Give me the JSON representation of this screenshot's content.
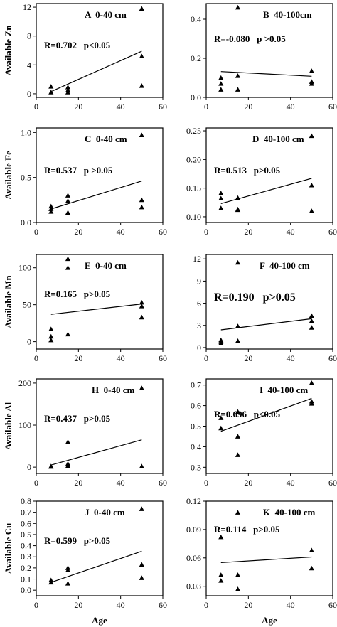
{
  "chart_data": [
    {
      "type": "scatter",
      "label": "A  0-40 cm",
      "stat": "R=0.702   p<0.05",
      "ylabel": "Available Zn",
      "xlabel": "",
      "xlim": [
        0,
        60
      ],
      "ylim": [
        -0.5,
        12.5
      ],
      "xticks": [
        "0",
        "20",
        "40",
        "60"
      ],
      "yticks": [
        "0",
        "4",
        "8",
        "12"
      ],
      "points": [
        [
          7,
          0.2
        ],
        [
          7,
          1.0
        ],
        [
          15,
          0.2
        ],
        [
          15,
          0.5
        ],
        [
          15,
          0.9
        ],
        [
          50,
          11.8
        ],
        [
          50,
          5.2
        ],
        [
          50,
          1.1
        ]
      ],
      "trend": [
        [
          7,
          0.3
        ],
        [
          50,
          5.9
        ]
      ]
    },
    {
      "type": "scatter",
      "label": "B  40-100cm",
      "stat": "R=-0.080   p >0.05",
      "ylabel": "",
      "xlabel": "",
      "xlim": [
        0,
        60
      ],
      "ylim": [
        0,
        0.48
      ],
      "xticks": [
        "0",
        "20",
        "40",
        "60"
      ],
      "yticks": [
        "0.0",
        "0.2",
        "0.4"
      ],
      "points": [
        [
          7,
          0.1
        ],
        [
          7,
          0.07
        ],
        [
          7,
          0.04
        ],
        [
          15,
          0.46
        ],
        [
          15,
          0.11
        ],
        [
          15,
          0.04
        ],
        [
          50,
          0.135
        ],
        [
          50,
          0.08
        ],
        [
          50,
          0.07
        ]
      ],
      "trend": [
        [
          7,
          0.132
        ],
        [
          50,
          0.108
        ]
      ]
    },
    {
      "type": "scatter",
      "label": "C  0-40 cm",
      "stat": "R=0.537   p >0.05",
      "ylabel": "Available Fe",
      "xlabel": "",
      "xlim": [
        0,
        60
      ],
      "ylim": [
        0,
        1.05
      ],
      "xticks": [
        "0",
        "20",
        "40",
        "60"
      ],
      "yticks": [
        "0.0",
        "0.5",
        "1.0"
      ],
      "points": [
        [
          7,
          0.18
        ],
        [
          7,
          0.15
        ],
        [
          7,
          0.12
        ],
        [
          15,
          0.3
        ],
        [
          15,
          0.24
        ],
        [
          15,
          0.11
        ],
        [
          50,
          0.97
        ],
        [
          50,
          0.25
        ],
        [
          50,
          0.17
        ]
      ],
      "trend": [
        [
          7,
          0.15
        ],
        [
          50,
          0.46
        ]
      ]
    },
    {
      "type": "scatter",
      "label": "D  40-100 cm",
      "stat": "R=0.513   p>0.05",
      "ylabel": "",
      "xlabel": "",
      "xlim": [
        0,
        60
      ],
      "ylim": [
        0.09,
        0.255
      ],
      "xticks": [
        "0",
        "20",
        "40",
        "60"
      ],
      "yticks": [
        "0.10",
        "0.15",
        "0.20",
        "0.25"
      ],
      "points": [
        [
          7,
          0.141
        ],
        [
          7,
          0.132
        ],
        [
          7,
          0.115
        ],
        [
          15,
          0.133
        ],
        [
          15,
          0.113
        ],
        [
          15,
          0.112
        ],
        [
          50,
          0.241
        ],
        [
          50,
          0.155
        ],
        [
          50,
          0.11
        ]
      ],
      "trend": [
        [
          7,
          0.123
        ],
        [
          50,
          0.167
        ]
      ]
    },
    {
      "type": "scatter",
      "label": "E  0-40 cm",
      "stat": "R=0.165   p>0.05",
      "ylabel": "Available Mn",
      "xlabel": "",
      "xlim": [
        0,
        60
      ],
      "ylim": [
        -10,
        118
      ],
      "xticks": [
        "0",
        "20",
        "40",
        "60"
      ],
      "yticks": [
        "0",
        "50",
        "100"
      ],
      "points": [
        [
          7,
          17
        ],
        [
          7,
          7
        ],
        [
          7,
          2
        ],
        [
          15,
          112
        ],
        [
          15,
          100
        ],
        [
          15,
          10
        ],
        [
          50,
          53
        ],
        [
          50,
          48
        ],
        [
          50,
          33
        ]
      ],
      "trend": [
        [
          7,
          37
        ],
        [
          50,
          51
        ]
      ]
    },
    {
      "type": "scatter",
      "label": "F  40-100 cm",
      "stat": "R=0.190   p>0.05",
      "ylabel": "",
      "xlabel": "",
      "xlim": [
        0,
        60
      ],
      "ylim": [
        -0.2,
        12.6
      ],
      "xticks": [
        "0",
        "20",
        "40",
        "60"
      ],
      "yticks": [
        "0",
        "3",
        "6",
        "9",
        "12"
      ],
      "points": [
        [
          7,
          1.0
        ],
        [
          7,
          0.8
        ],
        [
          7,
          0.6
        ],
        [
          15,
          11.5
        ],
        [
          15,
          2.9
        ],
        [
          15,
          0.9
        ],
        [
          50,
          4.3
        ],
        [
          50,
          3.6
        ],
        [
          50,
          2.7
        ]
      ],
      "trend": [
        [
          7,
          2.4
        ],
        [
          50,
          3.9
        ]
      ]
    },
    {
      "type": "scatter",
      "label": "H  0-40 cm",
      "stat": "R=0.437   p>0.05",
      "ylabel": "Available Al",
      "xlabel": "",
      "xlim": [
        0,
        60
      ],
      "ylim": [
        -15,
        210
      ],
      "xticks": [
        "0",
        "20",
        "40",
        "60"
      ],
      "yticks": [
        "0",
        "100",
        "200"
      ],
      "points": [
        [
          7,
          2
        ],
        [
          7,
          1
        ],
        [
          15,
          60
        ],
        [
          15,
          8
        ],
        [
          15,
          3
        ],
        [
          50,
          188
        ],
        [
          50,
          2
        ]
      ],
      "trend": [
        [
          7,
          5
        ],
        [
          50,
          65
        ]
      ]
    },
    {
      "type": "scatter",
      "label": "I  40-100 cm",
      "stat": "R=0.696   p<0.05",
      "ylabel": "",
      "xlabel": "",
      "xlim": [
        0,
        60
      ],
      "ylim": [
        0.27,
        0.73
      ],
      "xticks": [
        "0",
        "20",
        "40",
        "60"
      ],
      "yticks": [
        "0.3",
        "0.4",
        "0.5",
        "0.6",
        "0.7"
      ],
      "points": [
        [
          7,
          0.54
        ],
        [
          7,
          0.49
        ],
        [
          15,
          0.57
        ],
        [
          15,
          0.45
        ],
        [
          15,
          0.36
        ],
        [
          50,
          0.71
        ],
        [
          50,
          0.62
        ],
        [
          50,
          0.61
        ]
      ],
      "trend": [
        [
          7,
          0.475
        ],
        [
          50,
          0.635
        ]
      ]
    },
    {
      "type": "scatter",
      "label": "J  0-40 cm",
      "stat": "R=0.599   p>0.05",
      "ylabel": "Available Cu",
      "xlabel": "Age",
      "xlim": [
        0,
        60
      ],
      "ylim": [
        -0.05,
        0.8
      ],
      "xticks": [
        "0",
        "20",
        "40",
        "60"
      ],
      "yticks": [
        "0.0",
        "0.1",
        "0.2",
        "0.3",
        "0.4",
        "0.5",
        "0.6",
        "0.7",
        "0.8"
      ],
      "points": [
        [
          7,
          0.09
        ],
        [
          7,
          0.07
        ],
        [
          15,
          0.2
        ],
        [
          15,
          0.18
        ],
        [
          15,
          0.06
        ],
        [
          50,
          0.73
        ],
        [
          50,
          0.23
        ],
        [
          50,
          0.11
        ]
      ],
      "trend": [
        [
          7,
          0.07
        ],
        [
          50,
          0.35
        ]
      ]
    },
    {
      "type": "scatter",
      "label": "K  40-100 cm",
      "stat": "R=0.114   p>0.05",
      "ylabel": "",
      "xlabel": "Age",
      "xlim": [
        0,
        60
      ],
      "ylim": [
        0.02,
        0.12
      ],
      "xticks": [
        "0",
        "20",
        "40",
        "60"
      ],
      "yticks": [
        "0.03",
        "0.06",
        "0.09",
        "0.12"
      ],
      "points": [
        [
          7,
          0.082
        ],
        [
          7,
          0.042
        ],
        [
          7,
          0.036
        ],
        [
          15,
          0.108
        ],
        [
          15,
          0.042
        ],
        [
          15,
          0.027
        ],
        [
          50,
          0.068
        ],
        [
          50,
          0.049
        ]
      ],
      "trend": [
        [
          7,
          0.055
        ],
        [
          50,
          0.061
        ]
      ]
    }
  ]
}
